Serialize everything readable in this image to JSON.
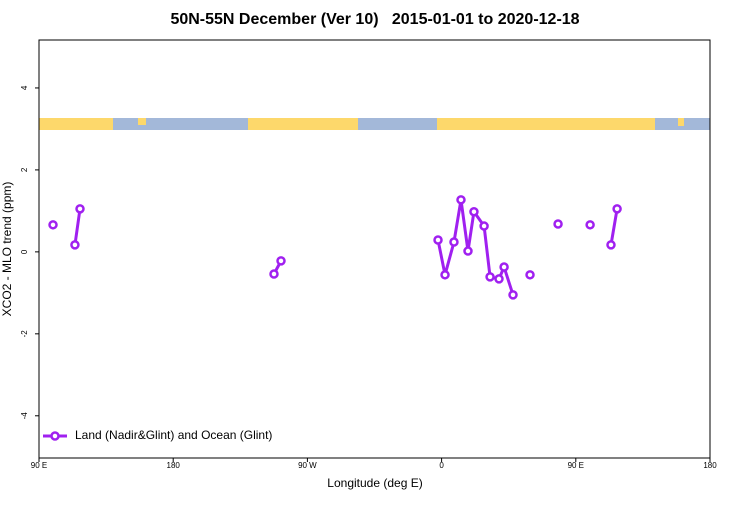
{
  "chart_data": {
    "type": "line",
    "title": "50N-55N December (Ver 10)   2015-01-01 to 2020-12-18",
    "xlabel": "Longitude (deg E)",
    "ylabel": "XCO2 - MLO trend (ppm)",
    "xlim": [
      90,
      540
    ],
    "xticks": [
      {
        "value": 90,
        "label": "90 E"
      },
      {
        "value": 180,
        "label": "180"
      },
      {
        "value": 270,
        "label": "90 W"
      },
      {
        "value": 360,
        "label": "0"
      },
      {
        "value": 450,
        "label": "90 E"
      },
      {
        "value": 540,
        "label": "180"
      }
    ],
    "ylim": [
      -5.03,
      5.17
    ],
    "yticks": [
      -4,
      -2,
      0,
      2,
      4
    ],
    "legend": "bottomleft",
    "series": [
      {
        "name": "Land (Nadir&Glint) and Ocean (Glint)",
        "color": "#a020f0",
        "x": [
          99.4,
          null,
          114.1,
          117.5,
          null,
          247.6,
          252.3,
          null,
          357.6,
          362.3,
          368.3,
          373.0,
          377.7,
          381.7,
          388.5,
          392.5,
          398.5,
          401.9,
          407.9,
          null,
          419.3,
          null,
          438.1,
          null,
          459.6,
          null,
          473.6,
          477.7
        ],
        "values": [
          0.66,
          null,
          0.17,
          1.05,
          null,
          -0.54,
          -0.22,
          null,
          0.29,
          -0.56,
          0.24,
          1.27,
          0.02,
          0.98,
          0.63,
          -0.61,
          -0.66,
          -0.37,
          -1.05,
          null,
          -0.56,
          null,
          0.68,
          null,
          0.66,
          null,
          0.17,
          1.05
        ]
      }
    ]
  }
}
